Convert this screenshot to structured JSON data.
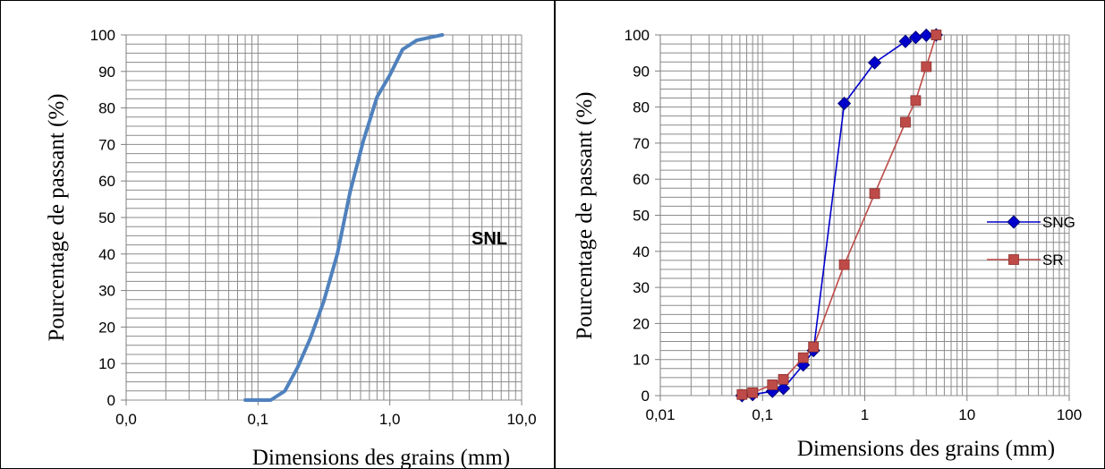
{
  "chart_data": [
    {
      "type": "line",
      "x_scale": "log",
      "xlim": [
        0.01,
        10
      ],
      "ylim": [
        0,
        100
      ],
      "x_tick_labels": [
        "0,0",
        "0,1",
        "1,0",
        "10,0"
      ],
      "y_tick_labels": [
        "0",
        "10",
        "20",
        "30",
        "40",
        "50",
        "60",
        "70",
        "80",
        "90",
        "100"
      ],
      "xlabel": "Dimensions des grains (mm)",
      "ylabel": "Pourcentage de passant (%)",
      "annotation": "SNL",
      "grid": true,
      "series": [
        {
          "color": "#4F81BD",
          "x": [
            0.08,
            0.125,
            0.16,
            0.2,
            0.25,
            0.315,
            0.4,
            0.5,
            0.63,
            0.8,
            1.0,
            1.25,
            1.6,
            2.0,
            2.5
          ],
          "y": [
            0,
            0,
            2.5,
            9,
            17,
            27,
            40,
            57,
            71,
            83,
            89,
            96,
            98.5,
            99.3,
            100
          ]
        }
      ]
    },
    {
      "type": "line",
      "x_scale": "log",
      "xlim": [
        0.01,
        100
      ],
      "ylim": [
        0,
        100
      ],
      "x_tick_labels": [
        "0,01",
        "0,1",
        "1",
        "10",
        "100"
      ],
      "y_tick_labels": [
        "0",
        "10",
        "20",
        "30",
        "40",
        "50",
        "60",
        "70",
        "80",
        "90",
        "100"
      ],
      "xlabel": "Dimensions des grains (mm)",
      "ylabel": "Pourcentage de passant (%)",
      "grid": true,
      "legend": "right",
      "series": [
        {
          "name": "SNG",
          "color": "#0000CC",
          "marker": "diamond",
          "x": [
            0.063,
            0.08,
            0.125,
            0.16,
            0.25,
            0.315,
            0.63,
            1.25,
            2.5,
            3.15,
            4.0,
            5.0
          ],
          "y": [
            0,
            0.3,
            1.2,
            2,
            8.5,
            12.5,
            81,
            92.3,
            98.2,
            99.3,
            99.9,
            100
          ]
        },
        {
          "name": "SR",
          "color": "#BE4B48",
          "marker": "square",
          "x": [
            0.063,
            0.08,
            0.125,
            0.16,
            0.25,
            0.315,
            0.63,
            1.25,
            2.5,
            3.15,
            4.0,
            5.0
          ],
          "y": [
            0.3,
            0.8,
            3,
            4.5,
            10.5,
            13.5,
            36.3,
            56,
            75.8,
            81.8,
            91.2,
            100
          ]
        }
      ]
    }
  ]
}
